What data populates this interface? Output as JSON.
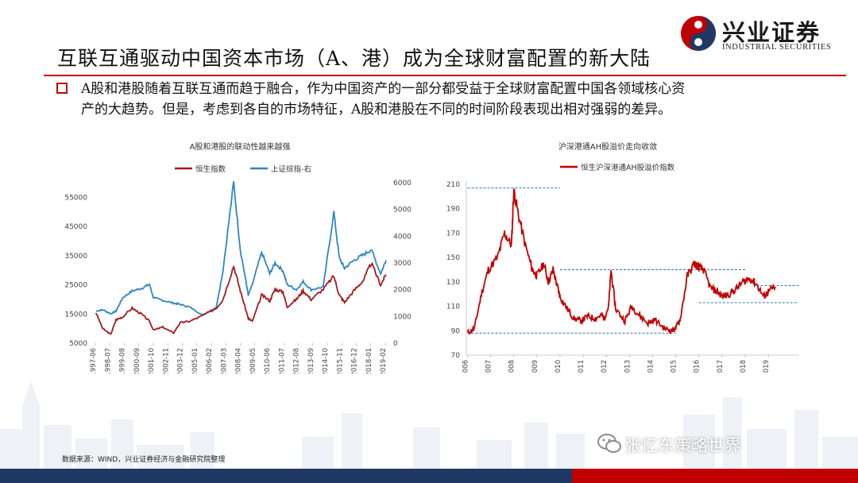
{
  "header": {
    "title": "互联互通驱动中国资本市场（A、港）成为全球财富配置的新大陆",
    "logo_cn": "兴业证券",
    "logo_en": "INDUSTRIAL SECURITIES"
  },
  "bullet": {
    "line1": "A股和港股随着互联互通而趋于融合，作为中国资产的一部分都受益于全球财富配置中国各领域核心资",
    "line2": "产的大趋势。但是，考虑到各自的市场特征，A股和港股在不同的时间阶段表现出相对强弱的差异。"
  },
  "colors": {
    "hsi": "#a31a1c",
    "shcomp": "#2e86c1",
    "ah": "#c00000",
    "dashed": "#2e75b6",
    "accent_red": "#c00000",
    "accent_navy": "#1f3864"
  },
  "chart_data": [
    {
      "type": "line",
      "title": "A股和港股的联动性越来越强",
      "legend_position": "top",
      "x_ticks": [
        "1997-06",
        "1998-07",
        "1999-08",
        "2000-09",
        "2001-10",
        "2002-11",
        "2003-12",
        "2005-01",
        "2006-02",
        "2007-03",
        "2008-04",
        "2009-05",
        "2010-06",
        "2011-07",
        "2012-08",
        "2013-09",
        "2014-10",
        "2015-11",
        "2016-12",
        "2018-01",
        "2019-02"
      ],
      "left_axis": {
        "ticks": [
          "5000",
          "15000",
          "25000",
          "35000",
          "45000",
          "55000"
        ],
        "range": [
          5000,
          60000
        ]
      },
      "right_axis": {
        "ticks": [
          "0",
          "1000",
          "2000",
          "3000",
          "4000",
          "5000",
          "6000"
        ],
        "range": [
          0,
          6000
        ]
      },
      "series": [
        {
          "name": "恒生指数",
          "axis": "left",
          "x": [
            1997.5,
            1998.0,
            1998.6,
            1999.0,
            1999.5,
            2000.2,
            2000.9,
            2001.5,
            2001.8,
            2002.5,
            2003.3,
            2003.8,
            2004.5,
            2005.5,
            2006.5,
            2007.0,
            2007.8,
            2008.3,
            2008.9,
            2009.2,
            2009.9,
            2010.5,
            2010.9,
            2011.5,
            2011.8,
            2012.5,
            2013.0,
            2013.6,
            2014.5,
            2015.3,
            2015.7,
            2016.1,
            2016.8,
            2017.5,
            2018.1,
            2018.8,
            2019.2
          ],
          "y": [
            15500,
            10000,
            8000,
            13000,
            14000,
            17000,
            15000,
            12500,
            9500,
            10500,
            8500,
            12000,
            12500,
            14500,
            17000,
            20000,
            31500,
            23000,
            13500,
            12500,
            21500,
            19500,
            23500,
            22500,
            17500,
            20000,
            23000,
            20000,
            23500,
            28000,
            21500,
            19000,
            23000,
            26500,
            32500,
            25000,
            28500
          ]
        },
        {
          "name": "上证综指-右",
          "axis": "right",
          "x": [
            1997.5,
            1998.0,
            1998.6,
            1999.0,
            1999.5,
            2000.2,
            2000.9,
            2001.5,
            2001.8,
            2002.5,
            2003.3,
            2003.8,
            2004.5,
            2005.5,
            2006.5,
            2007.0,
            2007.8,
            2008.3,
            2008.9,
            2009.2,
            2009.9,
            2010.5,
            2010.9,
            2011.5,
            2011.8,
            2012.5,
            2013.0,
            2013.6,
            2014.5,
            2015.3,
            2015.7,
            2016.1,
            2016.8,
            2017.5,
            2018.1,
            2018.8,
            2019.2
          ],
          "y": [
            1200,
            1250,
            1100,
            1200,
            1700,
            1950,
            2050,
            2200,
            1700,
            1600,
            1500,
            1450,
            1350,
            1050,
            1350,
            2700,
            6000,
            3500,
            1800,
            2200,
            3400,
            2600,
            3000,
            2700,
            2200,
            2000,
            2300,
            2000,
            2100,
            4900,
            3200,
            2800,
            3100,
            3300,
            3500,
            2600,
            3100
          ]
        }
      ]
    },
    {
      "type": "line",
      "title": "沪深港通AH股溢价走向收敛",
      "legend_position": "top",
      "x_ticks": [
        "2006",
        "2007",
        "2008",
        "2009",
        "2010",
        "2011",
        "2012",
        "2013",
        "2014",
        "2015",
        "2016",
        "2017",
        "2018",
        "2019"
      ],
      "y_ticks": [
        "70",
        "90",
        "110",
        "130",
        "150",
        "170",
        "190",
        "210"
      ],
      "ylim": [
        70,
        210
      ],
      "series": [
        {
          "name": "恒生沪深港通AH股溢价指数",
          "x": [
            2006.0,
            2006.3,
            2006.6,
            2006.9,
            2007.3,
            2007.6,
            2007.9,
            2008.0,
            2008.2,
            2008.5,
            2008.8,
            2009.0,
            2009.3,
            2009.5,
            2009.7,
            2009.9,
            2010.0,
            2010.3,
            2010.6,
            2010.9,
            2011.2,
            2011.5,
            2011.8,
            2011.9,
            2012.1,
            2012.2,
            2012.4,
            2012.8,
            2013.1,
            2013.4,
            2013.8,
            2014.1,
            2014.5,
            2014.8,
            2015.0,
            2015.2,
            2015.5,
            2015.8,
            2016.0,
            2016.2,
            2016.5,
            2016.8,
            2017.0,
            2017.3,
            2017.6,
            2017.9,
            2018.2,
            2018.5,
            2018.8,
            2019.0,
            2019.3
          ],
          "y": [
            88,
            92,
            120,
            140,
            150,
            170,
            160,
            205,
            185,
            160,
            140,
            135,
            145,
            130,
            140,
            125,
            118,
            108,
            100,
            98,
            102,
            100,
            103,
            100,
            110,
            140,
            108,
            98,
            110,
            103,
            96,
            99,
            92,
            90,
            92,
            100,
            135,
            145,
            142,
            140,
            125,
            122,
            118,
            120,
            124,
            130,
            133,
            128,
            118,
            122,
            126
          ]
        }
      ],
      "reference_lines": [
        {
          "y": 207,
          "x": [
            2006.0,
            2010.0
          ]
        },
        {
          "y": 140,
          "x": [
            2010.0,
            2018.0
          ]
        },
        {
          "y": 88,
          "x": [
            2006.0,
            2015.0
          ]
        },
        {
          "y": 127,
          "x": [
            2018.5,
            2020.3
          ]
        },
        {
          "y": 113,
          "x": [
            2016.0,
            2020.3
          ]
        }
      ]
    }
  ],
  "source": "数据来源：WIND，兴业证券经济与金融研究院整理",
  "watermark": "张忆东策略世界"
}
